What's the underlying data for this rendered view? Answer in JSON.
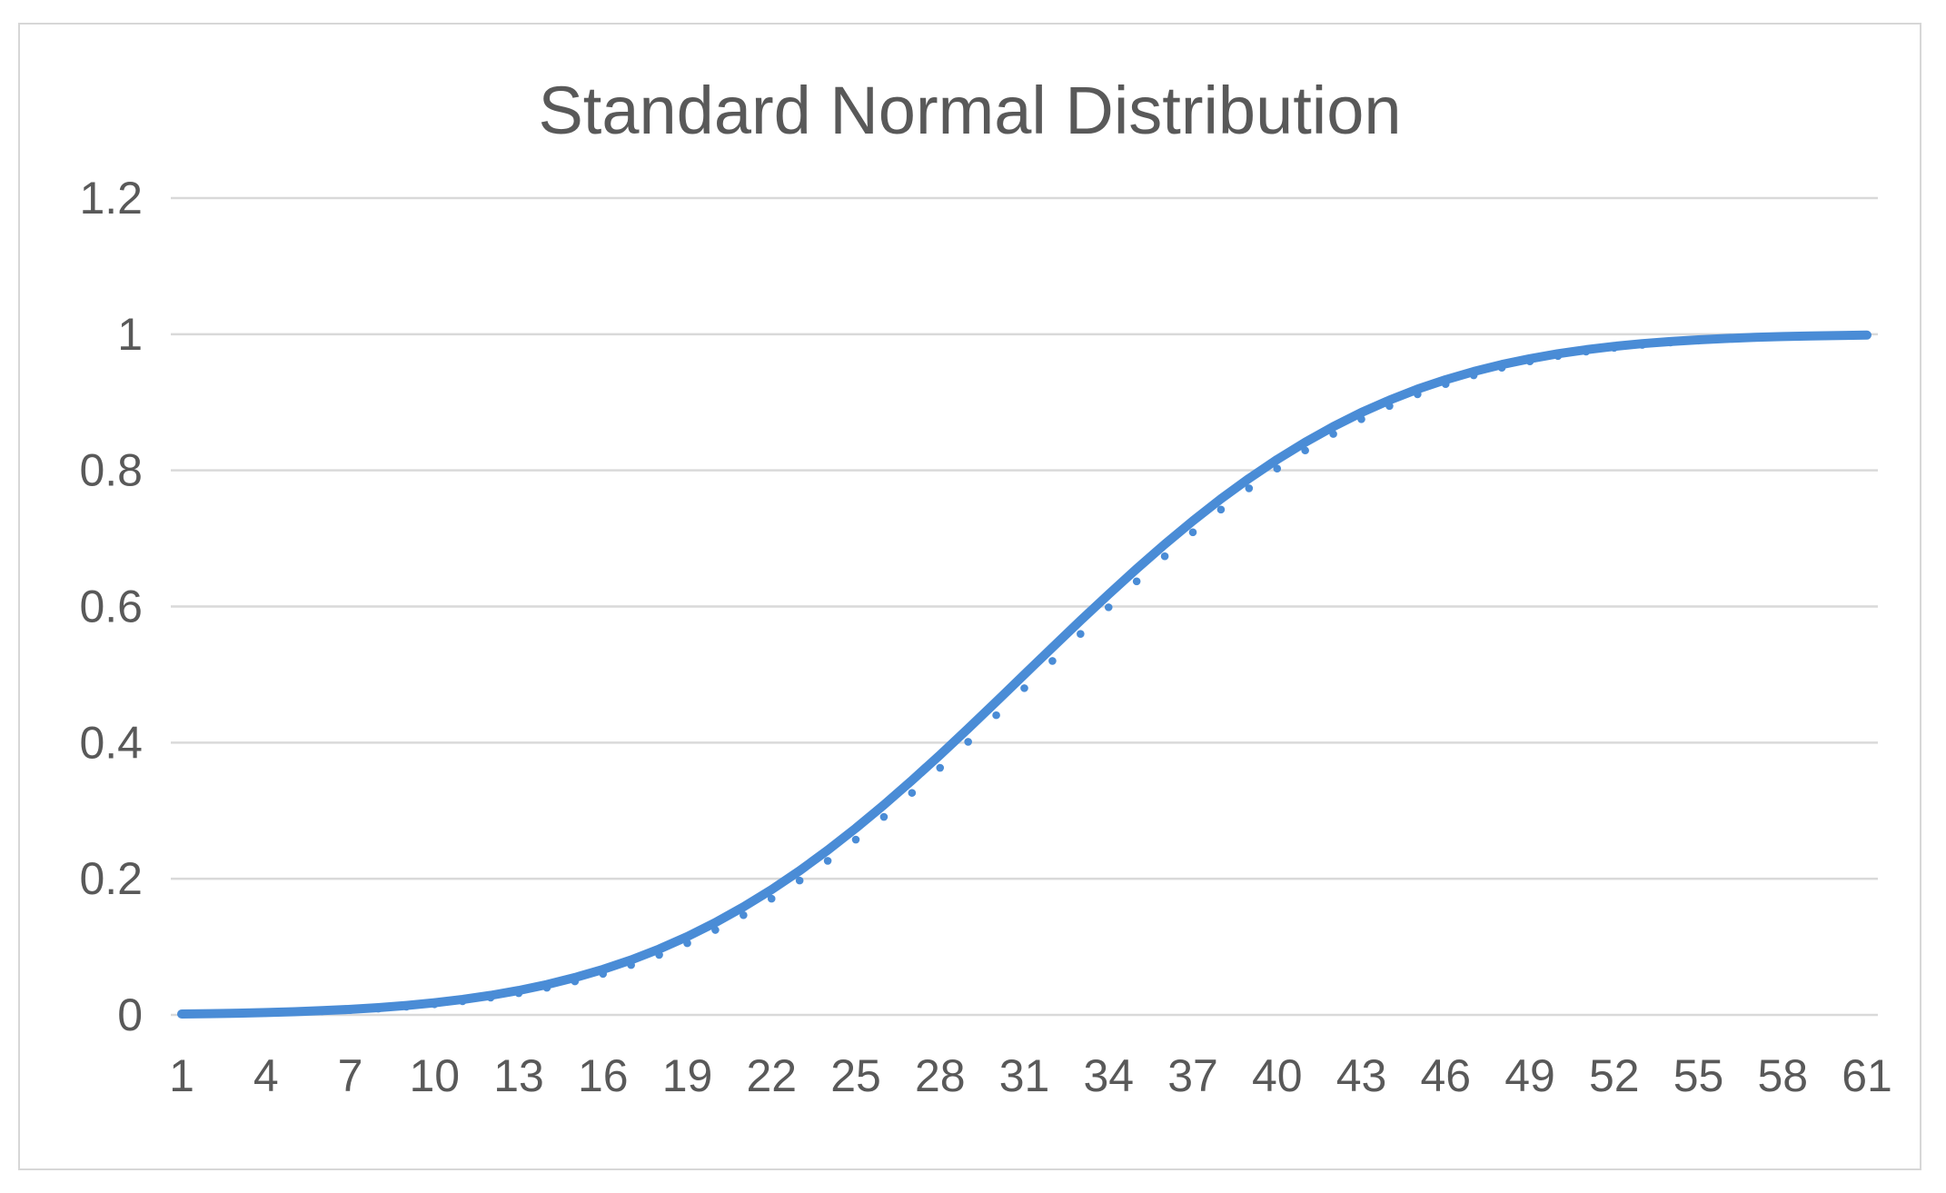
{
  "chart_data": {
    "type": "line",
    "title": "Standard Normal Distribution",
    "xlabel": "",
    "ylabel": "",
    "legend": "none",
    "grid": "horizontal",
    "ylim": [
      0,
      1.2
    ],
    "y_ticks": [
      0,
      0.2,
      0.4,
      0.6,
      0.8,
      1,
      1.2
    ],
    "y_tick_labels": [
      "0",
      "0.2",
      "0.4",
      "0.6",
      "0.8",
      "1",
      "1.2"
    ],
    "x_range": [
      1,
      61
    ],
    "x_tick_values": [
      1,
      4,
      7,
      10,
      13,
      16,
      19,
      22,
      25,
      28,
      31,
      34,
      37,
      40,
      43,
      46,
      49,
      52,
      55,
      58,
      61
    ],
    "x_tick_labels": [
      "1",
      "4",
      "7",
      "10",
      "13",
      "16",
      "19",
      "22",
      "25",
      "28",
      "31",
      "34",
      "37",
      "40",
      "43",
      "46",
      "49",
      "52",
      "55",
      "58",
      "61"
    ],
    "series": [
      {
        "name": "series-1-smooth-line",
        "style": "thick-smooth-line",
        "color": "#4a8cd6",
        "values": [
          0.00135,
          0.00187,
          0.00256,
          0.00347,
          0.00466,
          0.00621,
          0.0082,
          0.01072,
          0.0139,
          0.01786,
          0.02275,
          0.02872,
          0.03593,
          0.04457,
          0.0548,
          0.06681,
          0.08076,
          0.0968,
          0.11507,
          0.13567,
          0.15866,
          0.18406,
          0.21186,
          0.24196,
          0.27425,
          0.30854,
          0.34458,
          0.38209,
          0.42074,
          0.46017,
          0.5,
          0.53983,
          0.57926,
          0.61791,
          0.65542,
          0.69146,
          0.72575,
          0.75804,
          0.78814,
          0.81594,
          0.84134,
          0.86433,
          0.88493,
          0.9032,
          0.91924,
          0.93319,
          0.9452,
          0.95543,
          0.96407,
          0.97128,
          0.97725,
          0.98214,
          0.9861,
          0.98928,
          0.9918,
          0.99379,
          0.99534,
          0.99653,
          0.99744,
          0.99813,
          0.99865
        ]
      },
      {
        "name": "series-2-dot-markers",
        "style": "round-markers",
        "color": "#4a8cd6",
        "values": [
          0.00113,
          0.00157,
          0.00216,
          0.00295,
          0.00398,
          0.00533,
          0.00708,
          0.0093,
          0.01213,
          0.01566,
          0.02005,
          0.02544,
          0.03198,
          0.03987,
          0.04925,
          0.06033,
          0.07327,
          0.08823,
          0.10536,
          0.12478,
          0.14656,
          0.17076,
          0.19738,
          0.22635,
          0.25759,
          0.29094,
          0.32617,
          0.36302,
          0.40119,
          0.44032,
          0.48005,
          0.51998,
          0.55971,
          0.59884,
          0.63701,
          0.67386,
          0.70909,
          0.74243,
          0.77366,
          0.80264,
          0.82924,
          0.85344,
          0.87522,
          0.89463,
          0.91175,
          0.92671,
          0.93965,
          0.95073,
          0.96012,
          0.968,
          0.97455,
          0.97994,
          0.98433,
          0.98786,
          0.99068,
          0.99291,
          0.99466,
          0.99601,
          0.99704,
          0.99783,
          0.99843
        ]
      }
    ],
    "colors": {
      "series_blue": "#4a8cd6",
      "gridline": "#d9d9d9",
      "tick_text": "#595959",
      "title_text": "#595959",
      "frame_border": "#d7d7d7",
      "background": "#ffffff"
    }
  }
}
